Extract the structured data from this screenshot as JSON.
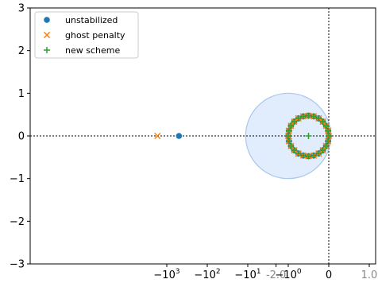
{
  "chart_data": {
    "type": "scatter",
    "x_axis": {
      "scale": "symlog",
      "tick_labels": [
        {
          "x": -1000,
          "text": "−10",
          "exp": "3",
          "color": "#000000"
        },
        {
          "x": -100,
          "text": "−10",
          "exp": "2",
          "color": "#000000"
        },
        {
          "x": -10,
          "text": "−10",
          "exp": "1",
          "color": "#000000"
        },
        {
          "x": -2,
          "text": "-2.0",
          "exp": "",
          "color": "#888888"
        },
        {
          "x": -1,
          "text": "−10",
          "exp": "0",
          "color": "#000000"
        },
        {
          "x": 0,
          "text": "0",
          "exp": "",
          "color": "#000000"
        },
        {
          "x": 1,
          "text": "1.0",
          "exp": "",
          "color": "#888888"
        }
      ]
    },
    "y_axis": {
      "range": [
        -3,
        3
      ],
      "tick_labels": [
        {
          "y": 3,
          "text": "3"
        },
        {
          "y": 2,
          "text": "2"
        },
        {
          "y": 1,
          "text": "1"
        },
        {
          "y": 0,
          "text": "0"
        },
        {
          "y": -1,
          "text": "−1"
        },
        {
          "y": -2,
          "text": "−2"
        },
        {
          "y": -3,
          "text": "−3"
        }
      ]
    },
    "reference_lines": {
      "vertical_x": 0,
      "horizontal_y": 0,
      "style": "dotted"
    },
    "stability_region": {
      "center": [
        -1,
        0
      ],
      "radius": 1,
      "fill": "#dce9fb",
      "stroke": "#a9c8ee"
    },
    "series": [
      {
        "name": "unstabilized",
        "marker": "circle",
        "color": "#1f77b4",
        "ring": {
          "center": [
            -0.5,
            0
          ],
          "radius": 0.5,
          "count": 24
        },
        "points": [
          [
            -500,
            0
          ]
        ]
      },
      {
        "name": "ghost penalty",
        "marker": "x",
        "color": "#ff7f0e",
        "ring": {
          "center": [
            -0.5,
            0
          ],
          "radius": 0.5,
          "count": 24
        },
        "points": [
          [
            -1700,
            0
          ]
        ]
      },
      {
        "name": "new scheme",
        "marker": "plus",
        "color": "#2ca02c",
        "ring": {
          "center": [
            -0.5,
            0
          ],
          "radius": 0.5,
          "count": 24
        },
        "points": [
          [
            -0.5,
            0
          ]
        ]
      }
    ],
    "legend": {
      "position": "top-left"
    },
    "grid": false
  }
}
